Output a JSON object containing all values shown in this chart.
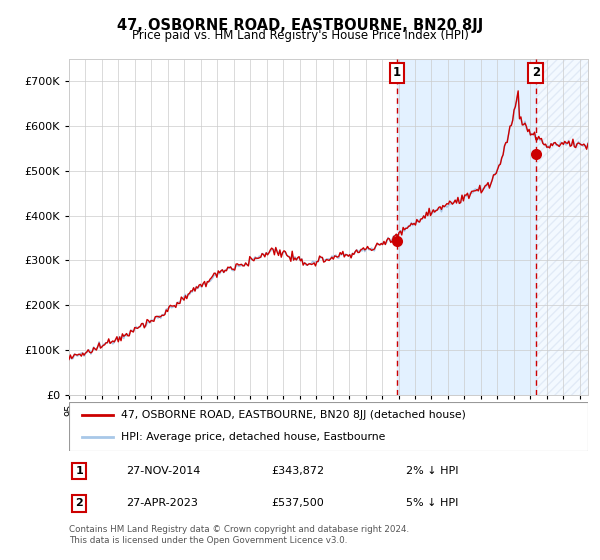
{
  "title": "47, OSBORNE ROAD, EASTBOURNE, BN20 8JJ",
  "subtitle": "Price paid vs. HM Land Registry's House Price Index (HPI)",
  "legend_line1": "47, OSBORNE ROAD, EASTBOURNE, BN20 8JJ (detached house)",
  "legend_line2": "HPI: Average price, detached house, Eastbourne",
  "transaction1_date": "27-NOV-2014",
  "transaction1_price": "£343,872",
  "transaction1_hpi": "2% ↓ HPI",
  "transaction2_date": "27-APR-2023",
  "transaction2_price": "£537,500",
  "transaction2_hpi": "5% ↓ HPI",
  "transaction1_x": 2014.91,
  "transaction1_y": 343872,
  "transaction2_x": 2023.33,
  "transaction2_y": 537500,
  "vline1_x": 2014.91,
  "vline2_x": 2023.33,
  "shade_start": 2014.91,
  "shade_end": 2023.33,
  "hpi_line_color": "#a8c8e8",
  "price_line_color": "#cc0000",
  "dot_color": "#cc0000",
  "shade_color": "#ddeeff",
  "vline_color": "#cc0000",
  "background_color": "#ffffff",
  "grid_color": "#cccccc",
  "footer": "Contains HM Land Registry data © Crown copyright and database right 2024.\nThis data is licensed under the Open Government Licence v3.0.",
  "ylim": [
    0,
    750000
  ],
  "yticks": [
    0,
    100000,
    200000,
    300000,
    400000,
    500000,
    600000,
    700000
  ],
  "ytick_labels": [
    "£0",
    "£100K",
    "£200K",
    "£300K",
    "£400K",
    "£500K",
    "£600K",
    "£700K"
  ],
  "xlim_start": 1995.0,
  "xlim_end": 2026.5
}
